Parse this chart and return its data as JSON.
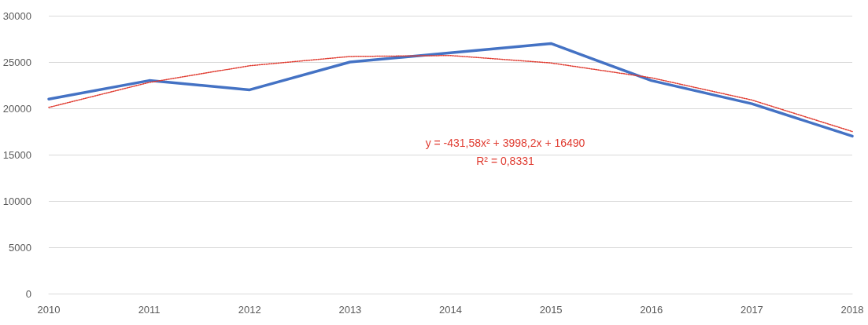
{
  "chart_data": {
    "type": "line",
    "categories": [
      "2010",
      "2011",
      "2012",
      "2013",
      "2014",
      "2015",
      "2016",
      "2017",
      "2018"
    ],
    "series": [
      {
        "color": "#4472c4",
        "values": [
          21000,
          23000,
          22000,
          25000,
          26000,
          27000,
          23000,
          20500,
          17000
        ],
        "line_style": "solid"
      },
      {
        "color": "#e03c31",
        "values": [
          20100,
          22800,
          24600,
          25600,
          25700,
          24900,
          23300,
          20900,
          17500
        ],
        "line_style": "dotted"
      }
    ],
    "annotations": [
      "y = -431,58x² + 3998,2x + 16490",
      "R² = 0,8331"
    ],
    "ylim": [
      0,
      30000
    ],
    "yticks": [
      0,
      5000,
      10000,
      15000,
      20000,
      25000,
      30000
    ],
    "grid": "y",
    "marker": "none"
  }
}
